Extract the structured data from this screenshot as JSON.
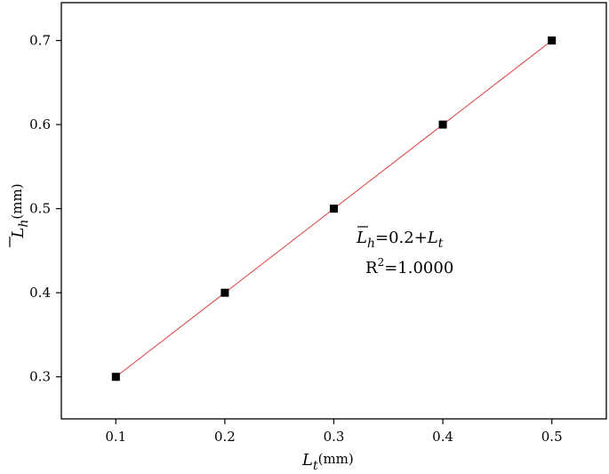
{
  "chart_data": {
    "type": "scatter",
    "x": [
      0.1,
      0.2,
      0.3,
      0.4,
      0.5
    ],
    "y": [
      0.3,
      0.4,
      0.5,
      0.6,
      0.7
    ],
    "xlim": [
      0.05,
      0.55
    ],
    "ylim": [
      0.25,
      0.745
    ],
    "xticks": [
      "0.1",
      "0.2",
      "0.3",
      "0.4",
      "0.5"
    ],
    "yticks": [
      "0.3",
      "0.4",
      "0.5",
      "0.6",
      "0.7"
    ],
    "xlabel": {
      "var": "L",
      "sub": "t",
      "unit": "(mm)"
    },
    "ylabel": {
      "var": "L",
      "sub": "h",
      "unit": "(mm)"
    },
    "fit_line": {
      "slope": 1,
      "intercept": 0.2,
      "color": "#e04040"
    },
    "marker_color": "#000000",
    "grid": false,
    "annotation": {
      "equation": {
        "lhs_var": "L",
        "lhs_sub": "h",
        "mid": "=0.2+",
        "rhs_var": "L",
        "rhs_sub": "t"
      },
      "r2": {
        "prefix": "R",
        "sup": "2",
        "value": "=1.0000"
      }
    }
  }
}
